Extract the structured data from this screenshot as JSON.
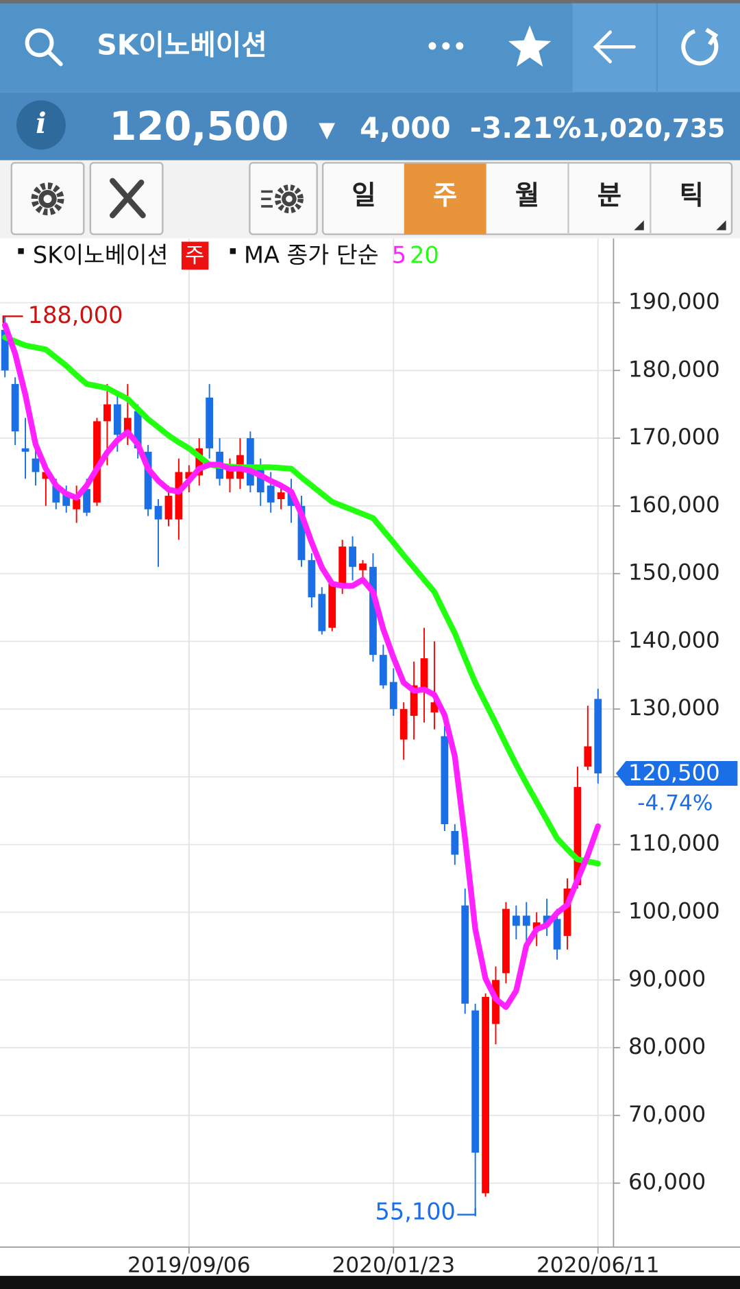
{
  "header": {
    "title": "SK이노베이션",
    "more": "•••"
  },
  "quote": {
    "info": "i",
    "price": "120,500",
    "direction": "▼",
    "change": "4,000",
    "change_rate": "-3.21%",
    "volume": "1,020,735"
  },
  "tabs": [
    "일",
    "주",
    "월",
    "분",
    "틱"
  ],
  "chart_data": {
    "type": "candlestick",
    "title": "SK이노베이션",
    "period": "주",
    "indicator": "MA 종가 단순",
    "up_color": "#ff0000",
    "down_color": "#1a6ee6",
    "categories": [
      null,
      null,
      null,
      null,
      null,
      null,
      null,
      null,
      null,
      null,
      null,
      null,
      null,
      null,
      null,
      null,
      null,
      null,
      "2019/09/06",
      null,
      null,
      null,
      null,
      null,
      null,
      null,
      null,
      null,
      null,
      null,
      null,
      null,
      null,
      null,
      null,
      null,
      null,
      null,
      "2020/01/23",
      null,
      null,
      null,
      null,
      null,
      null,
      null,
      null,
      null,
      null,
      null,
      null,
      null,
      null,
      null,
      null,
      null,
      null,
      null,
      "2020/06/11"
    ],
    "open": [
      186000,
      178000,
      168500,
      167000,
      164000,
      163000,
      162000,
      159500,
      162500,
      160500,
      172500,
      175000,
      170500,
      174000,
      168000,
      160000,
      158000,
      158000,
      164000,
      164500,
      176000,
      168000,
      164000,
      164000,
      170000,
      165500,
      163000,
      161000,
      162000,
      160000,
      152000,
      147000,
      142000,
      148000,
      154000,
      150500,
      151000,
      138000,
      134000,
      125500,
      129000,
      133000,
      129500,
      126000,
      112000,
      101000,
      85500,
      58500,
      83500,
      91000,
      99500,
      99500,
      97500,
      99500,
      99000,
      96500,
      104000,
      121500,
      131500
    ],
    "high": [
      188000,
      179000,
      173000,
      170000,
      166000,
      164000,
      163000,
      163000,
      164000,
      173000,
      178000,
      177000,
      178000,
      175000,
      169000,
      161000,
      163000,
      167000,
      166000,
      170000,
      178000,
      170000,
      167000,
      170000,
      171000,
      167000,
      165000,
      163000,
      164000,
      161500,
      153000,
      148000,
      149000,
      155000,
      155500,
      152000,
      153000,
      139500,
      136000,
      131000,
      137000,
      142000,
      140000,
      127500,
      113000,
      103500,
      86500,
      88000,
      92000,
      101500,
      101000,
      101500,
      100000,
      102000,
      100500,
      105000,
      121500,
      130500,
      133000
    ],
    "low": [
      179000,
      169000,
      164000,
      163000,
      160000,
      159500,
      159000,
      157500,
      158500,
      160000,
      166000,
      168000,
      169000,
      167000,
      158500,
      151000,
      157000,
      155000,
      162000,
      163000,
      167000,
      163000,
      162000,
      162500,
      162000,
      160000,
      159000,
      159500,
      157500,
      151000,
      145000,
      141000,
      141500,
      147000,
      149000,
      149500,
      137000,
      133000,
      129000,
      122500,
      125500,
      128000,
      127000,
      112000,
      107000,
      85000,
      55100,
      58000,
      80500,
      89500,
      96000,
      94500,
      95000,
      96500,
      93000,
      94500,
      103500,
      121000,
      119000
    ],
    "close": [
      180000,
      171000,
      168000,
      165000,
      165000,
      160500,
      160000,
      161000,
      159000,
      172500,
      175000,
      170500,
      173000,
      168500,
      159500,
      158000,
      161500,
      165000,
      165000,
      168500,
      168500,
      164000,
      166000,
      167500,
      163000,
      162000,
      160500,
      162000,
      160000,
      152000,
      146500,
      141500,
      148500,
      154000,
      151000,
      151500,
      138000,
      133500,
      130000,
      130000,
      133500,
      137500,
      131000,
      113000,
      108500,
      86500,
      64500,
      87500,
      90000,
      100500,
      98000,
      98000,
      98500,
      98000,
      94500,
      103500,
      118500,
      124500,
      120500
    ],
    "series": [
      {
        "name": "5",
        "color": "#ff22ff",
        "values": [
          186700,
          182500,
          176400,
          169100,
          165500,
          163000,
          161800,
          161200,
          163000,
          165500,
          167900,
          169700,
          170900,
          169100,
          165500,
          163700,
          162400,
          162100,
          163700,
          165500,
          166100,
          166100,
          165500,
          165500,
          165200,
          164500,
          163700,
          163000,
          162100,
          158800,
          154600,
          150900,
          148500,
          148200,
          148200,
          149100,
          147300,
          141800,
          137600,
          133900,
          132700,
          132900,
          132100,
          129100,
          123000,
          110800,
          97500,
          90200,
          87200,
          86000,
          88400,
          95100,
          97500,
          98100,
          99900,
          101100,
          104800,
          108400,
          112700
        ]
      },
      {
        "name": "20",
        "color": "#22ff11",
        "values": [
          184900,
          184300,
          183700,
          183400,
          183100,
          181900,
          180700,
          179300,
          178000,
          177700,
          177400,
          176600,
          175800,
          174300,
          172800,
          171600,
          170400,
          169400,
          168500,
          167300,
          166100,
          165900,
          165800,
          165700,
          165700,
          165700,
          165700,
          165600,
          165500,
          164200,
          163000,
          161800,
          160600,
          160000,
          159400,
          158800,
          158200,
          156400,
          154600,
          152700,
          150900,
          149100,
          147300,
          144200,
          141200,
          137500,
          133900,
          130900,
          127900,
          124800,
          121800,
          119000,
          116300,
          113600,
          110900,
          109300,
          107800,
          107500,
          107200
        ]
      }
    ],
    "ylim": [
      50800,
      199500
    ],
    "yticks": [
      {
        "value": 60000,
        "label": "60,000"
      },
      {
        "value": 70000,
        "label": "70,000"
      },
      {
        "value": 80000,
        "label": "80,000"
      },
      {
        "value": 90000,
        "label": "90,000"
      },
      {
        "value": 100000,
        "label": "100,000"
      },
      {
        "value": 110000,
        "label": "110,000"
      },
      {
        "value": 120000,
        "label": "120,000"
      },
      {
        "value": 130000,
        "label": "130,000"
      },
      {
        "value": 140000,
        "label": "140,000"
      },
      {
        "value": 150000,
        "label": "150,000"
      },
      {
        "value": 160000,
        "label": "160,000"
      },
      {
        "value": 170000,
        "label": "170,000"
      },
      {
        "value": 180000,
        "label": "180,000"
      },
      {
        "value": 190000,
        "label": "190,000"
      }
    ],
    "grid": true,
    "high_label": {
      "value": 188000,
      "label": "188,000"
    },
    "low_label": {
      "value": 55100,
      "label": "55,100"
    },
    "last_price": {
      "value": 120500,
      "label": "120,500"
    },
    "last_change": {
      "value": -4.74,
      "label": "-4.74%"
    }
  }
}
